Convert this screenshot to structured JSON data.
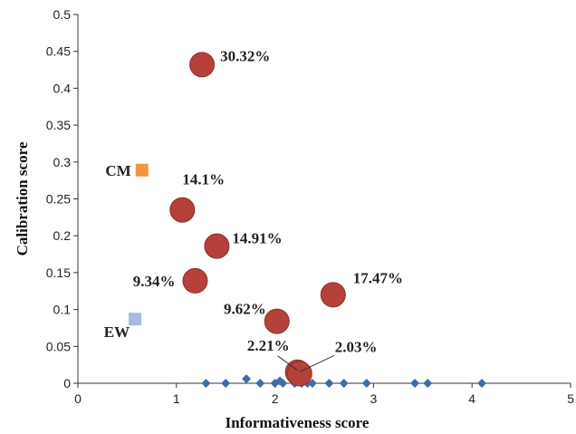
{
  "chart_data": {
    "type": "scatter",
    "xlabel": "Informativeness score",
    "ylabel": "Calibration score",
    "xlim": [
      0,
      5
    ],
    "ylim": [
      0,
      0.5
    ],
    "x_ticks": [
      "0",
      "1",
      "2",
      "3",
      "4",
      "5"
    ],
    "y_ticks": [
      "0",
      "0.05",
      "0.1",
      "0.15",
      "0.2",
      "0.25",
      "0.3",
      "0.35",
      "0.4",
      "0.45",
      "0.5"
    ],
    "grid": false,
    "series": [
      {
        "marker": "circle-large",
        "color": "#B5413A",
        "points": [
          {
            "x": 1.26,
            "y": 0.432,
            "label": "30.32%"
          },
          {
            "x": 1.06,
            "y": 0.235,
            "label": "14.1%"
          },
          {
            "x": 1.41,
            "y": 0.186,
            "label": "14.91%"
          },
          {
            "x": 1.19,
            "y": 0.139,
            "label": "9.34%"
          },
          {
            "x": 2.59,
            "y": 0.12,
            "label": "17.47%"
          },
          {
            "x": 2.02,
            "y": 0.084,
            "label": "9.62%"
          },
          {
            "x": 2.23,
            "y": 0.015,
            "label": "2.21%"
          },
          {
            "x": 2.25,
            "y": 0.013,
            "label": "2.03%"
          }
        ]
      },
      {
        "marker": "diamond",
        "color": "#3E6CA8",
        "points": [
          {
            "x": 1.3,
            "y": 0.0
          },
          {
            "x": 1.5,
            "y": 0.0
          },
          {
            "x": 1.71,
            "y": 0.006
          },
          {
            "x": 1.85,
            "y": 0.0
          },
          {
            "x": 2.0,
            "y": 0.0
          },
          {
            "x": 2.05,
            "y": 0.003
          },
          {
            "x": 2.08,
            "y": 0.0
          },
          {
            "x": 2.2,
            "y": 0.0
          },
          {
            "x": 2.27,
            "y": 0.0
          },
          {
            "x": 2.33,
            "y": 0.0
          },
          {
            "x": 2.38,
            "y": 0.0
          },
          {
            "x": 2.55,
            "y": 0.0
          },
          {
            "x": 2.7,
            "y": 0.0
          },
          {
            "x": 2.93,
            "y": 0.0
          },
          {
            "x": 3.42,
            "y": 0.0
          },
          {
            "x": 3.55,
            "y": 0.0
          },
          {
            "x": 4.1,
            "y": 0.0
          }
        ]
      },
      {
        "marker": "square",
        "color": "#F4953A",
        "points": [
          {
            "x": 0.65,
            "y": 0.289,
            "label": "CM"
          }
        ]
      },
      {
        "marker": "square",
        "color": "#A9BADC",
        "points": [
          {
            "x": 0.58,
            "y": 0.087,
            "label": "EW"
          }
        ]
      }
    ]
  }
}
